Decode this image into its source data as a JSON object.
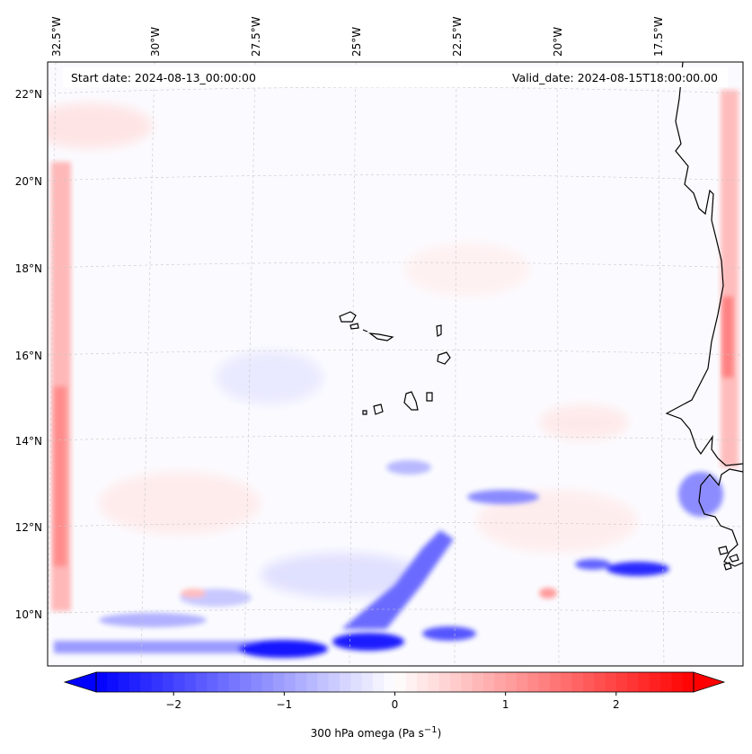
{
  "map": {
    "start_label": "Start date: 2024-08-13_00:00:00",
    "valid_label": "Valid_date: 2024-08-15T18:00:00.00",
    "lon_labels": [
      "32.5°W",
      "30°W",
      "27.5°W",
      "25°W",
      "22.5°W",
      "20°W",
      "17.5°W"
    ],
    "lat_labels": [
      "22°N",
      "20°N",
      "18°N",
      "16°N",
      "14°N",
      "12°N",
      "10°N"
    ],
    "variable": "300 hPa omega",
    "units": "Pa s",
    "units_exponent": "−1",
    "colormap": "bwr",
    "colors": {
      "negative": "#0000ff",
      "zero": "#ffffff",
      "positive": "#ff0000",
      "coastline": "#000000"
    }
  },
  "colorbar": {
    "min": -2.7,
    "max": 2.7,
    "ticks": [
      "−2",
      "−1",
      "0",
      "1",
      "2"
    ],
    "tick_values": [
      -2,
      -1,
      0,
      1,
      2
    ],
    "extend": "both"
  }
}
